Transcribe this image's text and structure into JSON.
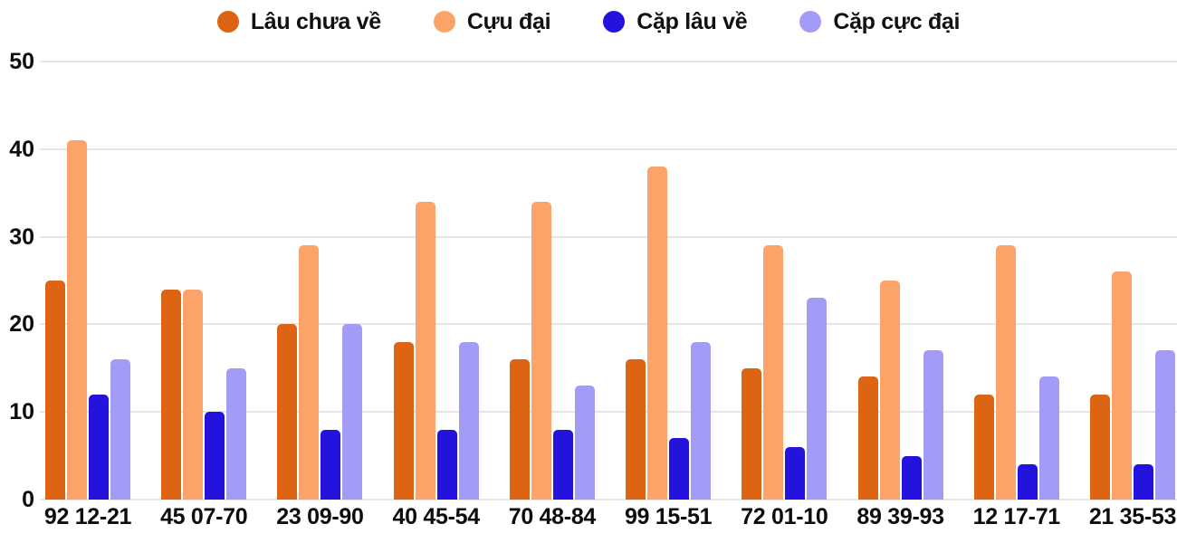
{
  "chart_data": {
    "type": "bar",
    "title": "",
    "xlabel": "",
    "ylabel": "",
    "categories": [
      "92 12-21",
      "45 07-70",
      "23 09-90",
      "40 45-54",
      "70 48-84",
      "99 15-51",
      "72 01-10",
      "89 39-93",
      "12 17-71",
      "21 35-53"
    ],
    "series": [
      {
        "name": "Lâu chưa về",
        "color": "#DC6412",
        "values": [
          25,
          24,
          20,
          18,
          16,
          16,
          15,
          14,
          12,
          12
        ]
      },
      {
        "name": "Cựu đại",
        "color": "#FCA369",
        "values": [
          41,
          24,
          29,
          34,
          34,
          38,
          29,
          25,
          29,
          26
        ]
      },
      {
        "name": "Cặp lâu về",
        "color": "#2313DD",
        "values": [
          12,
          10,
          8,
          8,
          8,
          7,
          6,
          5,
          4,
          4
        ]
      },
      {
        "name": "Cặp cực đại",
        "color": "#A39CF7",
        "values": [
          16,
          15,
          20,
          18,
          13,
          18,
          23,
          17,
          14,
          17
        ]
      }
    ],
    "ylim": [
      0,
      50
    ],
    "yticks": [
      0,
      10,
      20,
      30,
      40,
      50
    ],
    "grid": true,
    "legend_position": "top",
    "background_color": "#FFFFFF",
    "gridline_color": "#E6E6E6",
    "axis_text_color": "#0D0D0D"
  }
}
